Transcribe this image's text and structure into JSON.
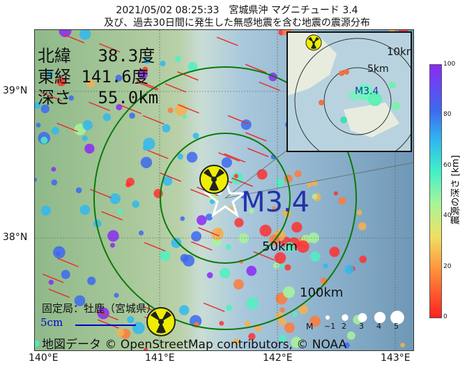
{
  "title": {
    "line1": "2021/05/02 08:25:33　宮城県沖 マグニチュード 3.4",
    "line2": "及び、過去30日間に発生した無感地震を含む地震の震源分布"
  },
  "epicenter": {
    "lat_label": "北緯　 38.3度",
    "lon_label": "東経 141.6度",
    "depth_label": "深さ　 55.0km",
    "magnitude_label": "M3.4",
    "lat": 38.3,
    "lon": 141.6,
    "depth_km": 55.0,
    "magnitude": 3.4
  },
  "rings": {
    "inner": "50km",
    "outer": "100km"
  },
  "inset": {
    "rings": {
      "outer": "10km",
      "inner": "5km"
    },
    "magnitude_label": "M3.4"
  },
  "station": "固定局：牡鹿（宮城県）",
  "scale_bar": "5cm",
  "attribution": "地図データ © OpenStreetMap contributors, © NOAA",
  "legend": {
    "label": "M",
    "sizes": [
      "~1",
      "2",
      "3",
      "4",
      "5"
    ]
  },
  "axes": {
    "x_ticks": [
      "140°E",
      "141°E",
      "142°E",
      "143°E"
    ],
    "y_ticks": [
      "39°N",
      "38°N"
    ]
  },
  "colorbar": {
    "label": "震源の深さ [km]",
    "ticks": [
      "0",
      "20",
      "40",
      "60",
      "80",
      "100"
    ],
    "range": [
      0,
      100
    ]
  },
  "icons": {
    "nuclear": "radiation-icon",
    "epicenter": "star-icon"
  }
}
